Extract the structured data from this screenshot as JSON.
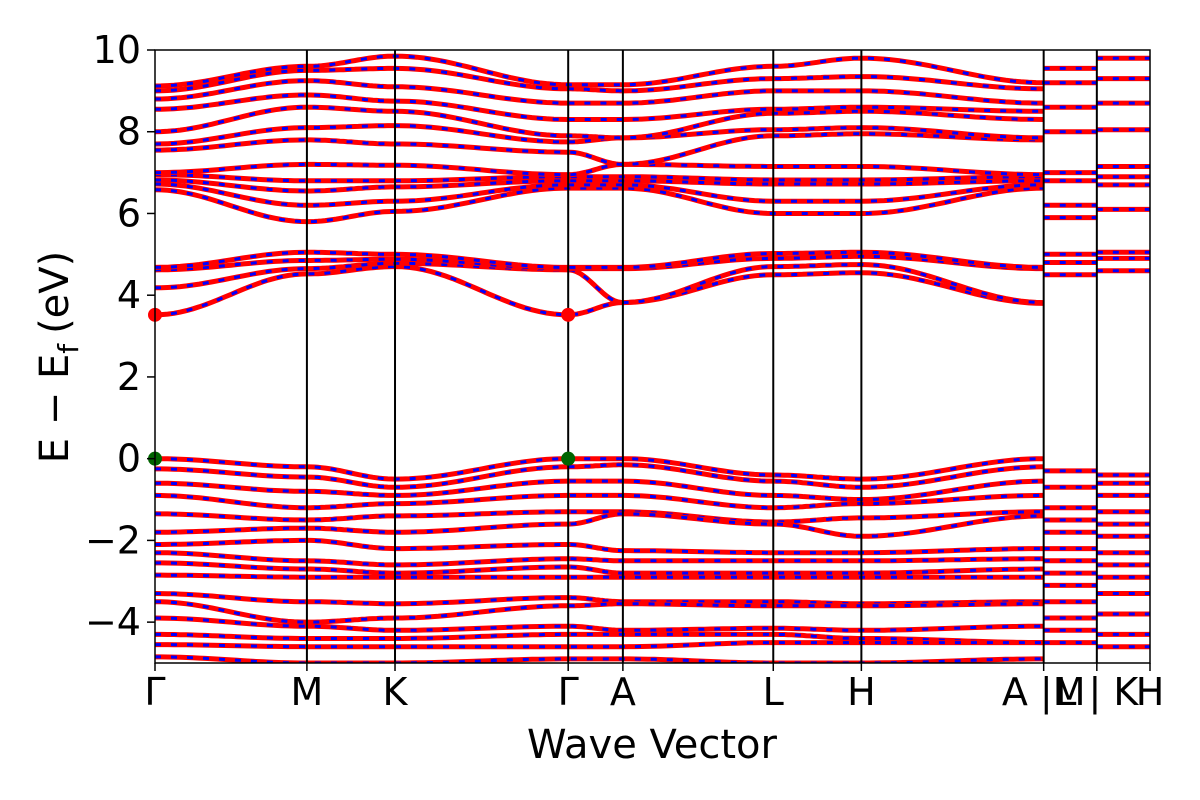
{
  "chart_data": {
    "type": "line",
    "title": "",
    "xlabel": "Wave Vector",
    "ylabel": "E − E_f (eV)",
    "ylabel_parts": {
      "main": "E − E",
      "sub": "f",
      "unit": "(eV)"
    },
    "ylim": [
      -5,
      10
    ],
    "y_ticks": [
      -4,
      -2,
      0,
      2,
      4,
      6,
      8,
      10
    ],
    "y_tick_labels": [
      "−4",
      "−2",
      "0",
      "2",
      "4",
      "6",
      "8",
      "10"
    ],
    "grid": false,
    "legend": "none",
    "kpath_positions": [
      0,
      1.0,
      1.58,
      2.72,
      3.08,
      4.07,
      4.65,
      5.85,
      6.2,
      6.55
    ],
    "kpath_labels": [
      "Γ",
      "M",
      "K",
      "Γ",
      "A",
      "L",
      "H",
      "A |M",
      "L | K",
      "H"
    ],
    "high_symmetry_lines": [
      1.0,
      1.58,
      2.72,
      3.08,
      4.07,
      4.65,
      5.85,
      6.2
    ],
    "series_colors": {
      "primary": "#ff0000",
      "dashed_overlay": "#0000ff"
    },
    "band_extrema_markers": [
      {
        "label": "CBM",
        "x": [
          0,
          2.72
        ],
        "y": 3.52,
        "color": "#ff0000"
      },
      {
        "label": "VBM",
        "x": [
          0,
          2.72
        ],
        "y": 0.0,
        "color": "#006400"
      }
    ],
    "bands_at_kpoints": {
      "conduction": [
        [
          3.52,
          4.52,
          4.7,
          3.52,
          3.82,
          4.5,
          4.55,
          3.8
        ],
        [
          4.18,
          4.65,
          4.78,
          4.62,
          3.82,
          4.7,
          4.75,
          3.82
        ],
        [
          4.62,
          4.85,
          4.88,
          4.65,
          4.65,
          4.9,
          4.95,
          4.65
        ],
        [
          4.68,
          5.05,
          5.0,
          4.68,
          4.68,
          5.02,
          5.05,
          4.68
        ],
        [
          6.58,
          5.8,
          6.05,
          6.62,
          6.62,
          6.0,
          6.0,
          6.62
        ],
        [
          6.72,
          6.2,
          6.3,
          6.7,
          6.7,
          6.3,
          6.3,
          6.7
        ],
        [
          6.82,
          6.55,
          6.65,
          6.8,
          6.8,
          6.72,
          6.72,
          6.8
        ],
        [
          6.95,
          6.8,
          6.8,
          6.9,
          6.9,
          6.82,
          6.82,
          6.9
        ],
        [
          7.0,
          7.2,
          7.18,
          6.95,
          7.2,
          7.15,
          7.15,
          6.95
        ],
        [
          7.55,
          7.8,
          7.7,
          7.5,
          7.2,
          7.9,
          7.95,
          7.8
        ],
        [
          7.7,
          8.1,
          8.15,
          7.75,
          7.85,
          8.05,
          8.1,
          7.85
        ],
        [
          8.0,
          8.6,
          8.5,
          7.9,
          7.85,
          8.45,
          8.5,
          8.3
        ],
        [
          8.55,
          8.9,
          8.75,
          8.3,
          8.3,
          8.55,
          8.6,
          8.5
        ],
        [
          8.8,
          9.25,
          9.1,
          8.7,
          8.7,
          9.0,
          9.0,
          8.7
        ],
        [
          9.0,
          9.5,
          9.55,
          9.05,
          9.0,
          9.3,
          9.35,
          9.05
        ],
        [
          9.12,
          9.6,
          9.85,
          9.15,
          9.15,
          9.6,
          9.8,
          9.2
        ]
      ],
      "valence": [
        [
          0.0,
          -0.2,
          -0.5,
          0.0,
          0.0,
          -0.4,
          -0.5,
          0.0
        ],
        [
          -0.25,
          -0.45,
          -0.7,
          -0.2,
          -0.15,
          -0.55,
          -0.7,
          -0.2
        ],
        [
          -0.6,
          -0.8,
          -0.9,
          -0.55,
          -0.55,
          -0.9,
          -1.0,
          -0.55
        ],
        [
          -0.9,
          -1.2,
          -1.1,
          -0.9,
          -0.9,
          -1.2,
          -1.1,
          -0.9
        ],
        [
          -1.35,
          -1.5,
          -1.4,
          -1.3,
          -1.3,
          -1.55,
          -1.45,
          -1.3
        ],
        [
          -1.8,
          -1.7,
          -1.8,
          -1.6,
          -1.35,
          -1.6,
          -1.9,
          -1.4
        ],
        [
          -2.1,
          -2.0,
          -2.2,
          -2.1,
          -2.25,
          -2.3,
          -2.3,
          -2.2
        ],
        [
          -2.3,
          -2.5,
          -2.6,
          -2.45,
          -2.5,
          -2.5,
          -2.5,
          -2.45
        ],
        [
          -2.55,
          -2.7,
          -2.8,
          -2.65,
          -2.8,
          -2.8,
          -2.8,
          -2.7
        ],
        [
          -2.85,
          -2.9,
          -2.9,
          -2.9,
          -2.9,
          -2.9,
          -2.9,
          -2.9
        ],
        [
          -3.3,
          -3.5,
          -3.55,
          -3.4,
          -3.5,
          -3.5,
          -3.55,
          -3.5
        ],
        [
          -3.5,
          -4.0,
          -3.9,
          -3.6,
          -3.55,
          -3.6,
          -3.6,
          -3.55
        ],
        [
          -3.9,
          -4.1,
          -4.2,
          -4.1,
          -4.2,
          -4.15,
          -4.2,
          -4.1
        ],
        [
          -4.3,
          -4.4,
          -4.4,
          -4.3,
          -4.3,
          -4.3,
          -4.4,
          -4.5
        ],
        [
          -4.55,
          -4.6,
          -4.6,
          -4.6,
          -4.6,
          -4.5,
          -4.5,
          -4.5
        ],
        [
          -4.85,
          -5.0,
          -5.0,
          -4.9,
          -4.9,
          -5.0,
          -5.0,
          -4.9
        ]
      ]
    },
    "segment_bands": {
      "M_L": [
        -4.5,
        -4.2,
        -3.9,
        -3.5,
        -3.1,
        -2.8,
        -2.5,
        -2.2,
        -1.8,
        -1.5,
        -1.2,
        -0.7,
        -0.3,
        4.5,
        4.8,
        5.0,
        5.9,
        6.2,
        6.8,
        7.0,
        8.0,
        8.6,
        9.2,
        9.55
      ],
      "K_H": [
        -4.6,
        -4.3,
        -3.8,
        -3.3,
        -2.9,
        -2.6,
        -2.3,
        -1.9,
        -1.6,
        -1.3,
        -0.9,
        -0.6,
        -0.4,
        4.6,
        4.9,
        5.05,
        6.1,
        6.7,
        6.9,
        7.15,
        8.05,
        8.7,
        9.3,
        9.8
      ]
    }
  }
}
